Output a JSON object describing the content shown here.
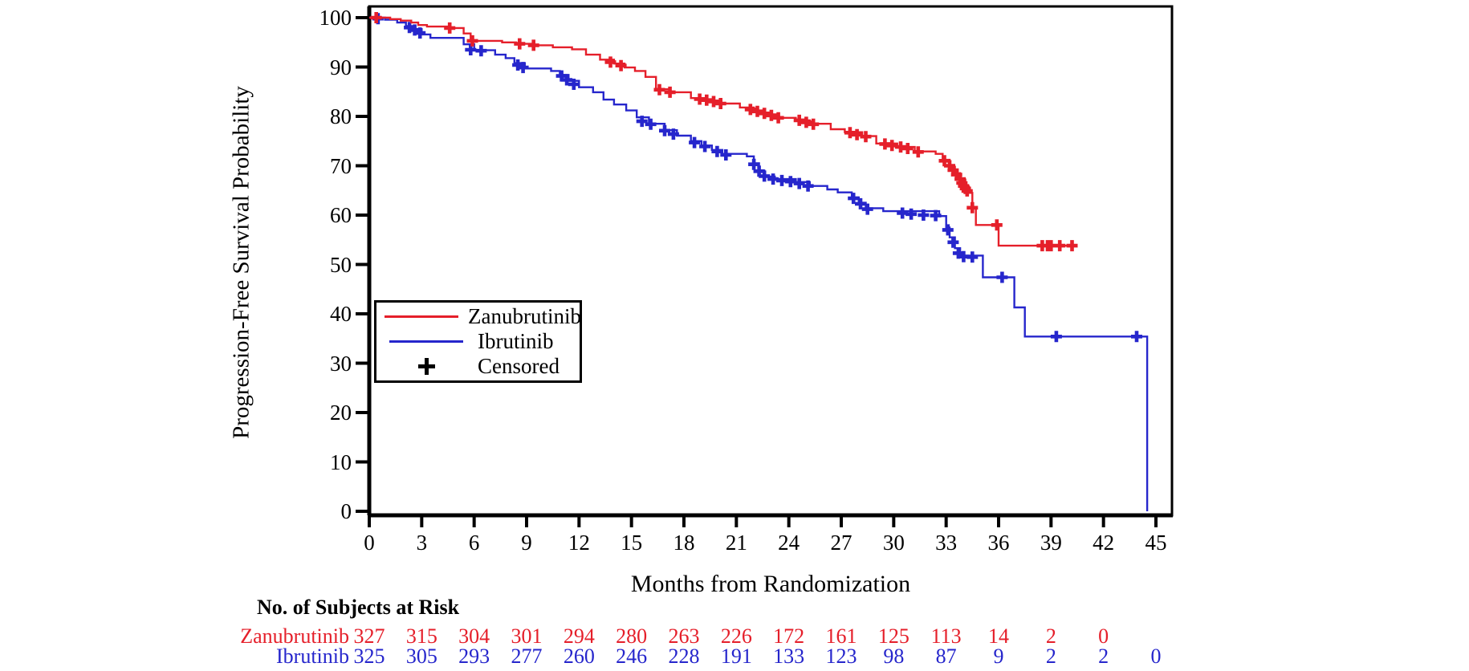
{
  "figure": {
    "y_axis": {
      "title": "Progression-Free Survival Probability",
      "tick_values": [
        0,
        10,
        20,
        30,
        40,
        50,
        60,
        70,
        80,
        90,
        100
      ],
      "range": [
        0,
        100
      ]
    },
    "x_axis": {
      "title": "Months from Randomization",
      "tick_values": [
        0,
        3,
        6,
        9,
        12,
        15,
        18,
        21,
        24,
        27,
        30,
        33,
        36,
        39,
        42,
        45
      ],
      "range": [
        0,
        45
      ]
    },
    "legend": {
      "items": [
        {
          "label": "Zanubrutinib",
          "swatch": "line",
          "color": "#e51f2a"
        },
        {
          "label": "Ibrutinib",
          "swatch": "line",
          "color": "#2626cc"
        },
        {
          "label": "Censored",
          "swatch": "plus",
          "color": "#000000"
        }
      ]
    },
    "risk_table": {
      "title": "No. of Subjects at Risk",
      "rows": [
        {
          "label": "Zanubrutinib",
          "color": "#e51f2a",
          "months": [
            0,
            3,
            6,
            9,
            12,
            15,
            18,
            21,
            24,
            27,
            30,
            33,
            36,
            39,
            42
          ],
          "values": [
            327,
            315,
            304,
            301,
            294,
            280,
            263,
            226,
            172,
            161,
            125,
            113,
            14,
            2,
            0
          ]
        },
        {
          "label": "Ibrutinib",
          "color": "#2626cc",
          "months": [
            0,
            3,
            6,
            9,
            12,
            15,
            18,
            21,
            24,
            27,
            30,
            33,
            36,
            39,
            42,
            45
          ],
          "values": [
            325,
            305,
            293,
            277,
            260,
            246,
            228,
            191,
            133,
            123,
            98,
            87,
            9,
            2,
            2,
            0
          ]
        }
      ]
    }
  },
  "chart_data": {
    "type": "line",
    "subtype": "kaplan-meier-step",
    "title": "",
    "xlabel": "Months from Randomization",
    "ylabel": "Progression-Free Survival Probability",
    "xlim": [
      0,
      45
    ],
    "ylim": [
      0,
      100
    ],
    "grid": false,
    "legend_position": "inside-left",
    "series": [
      {
        "name": "Zanubrutinib",
        "color": "#e51f2a",
        "steps": [
          [
            0,
            100
          ],
          [
            1.2,
            99.7
          ],
          [
            1.8,
            99.4
          ],
          [
            2.4,
            99.0
          ],
          [
            2.8,
            98.5
          ],
          [
            3.3,
            98.2
          ],
          [
            4.6,
            97.9
          ],
          [
            5.4,
            96.8
          ],
          [
            5.8,
            95.3
          ],
          [
            7.6,
            95.0
          ],
          [
            8.4,
            94.7
          ],
          [
            9.4,
            94.4
          ],
          [
            10.5,
            94.0
          ],
          [
            11.6,
            93.6
          ],
          [
            12.4,
            92.5
          ],
          [
            13.2,
            91.5
          ],
          [
            14.0,
            90.7
          ],
          [
            14.6,
            89.9
          ],
          [
            15.2,
            89.2
          ],
          [
            15.8,
            88.0
          ],
          [
            16.4,
            85.5
          ],
          [
            17.2,
            84.9
          ],
          [
            18.4,
            83.7
          ],
          [
            19.2,
            83.2
          ],
          [
            20.0,
            82.6
          ],
          [
            21.2,
            81.8
          ],
          [
            22.0,
            81.2
          ],
          [
            22.6,
            80.4
          ],
          [
            23.4,
            79.7
          ],
          [
            24.4,
            79.2
          ],
          [
            25.2,
            78.5
          ],
          [
            26.4,
            77.4
          ],
          [
            27.2,
            76.8
          ],
          [
            28.2,
            76.0
          ],
          [
            29.0,
            74.5
          ],
          [
            30.2,
            73.8
          ],
          [
            31.2,
            72.9
          ],
          [
            32.4,
            72.4
          ],
          [
            32.8,
            71.2
          ],
          [
            33.2,
            69.8
          ],
          [
            33.5,
            68.5
          ],
          [
            33.8,
            67.2
          ],
          [
            34.1,
            65.8
          ],
          [
            34.3,
            64.5
          ],
          [
            34.5,
            61.5
          ],
          [
            34.7,
            58.0
          ],
          [
            36.0,
            53.8
          ],
          [
            40.5,
            53.8
          ]
        ],
        "censor_marks": [
          [
            0.4,
            100
          ],
          [
            4.6,
            97.9
          ],
          [
            5.9,
            95.3
          ],
          [
            8.6,
            94.7
          ],
          [
            9.4,
            94.4
          ],
          [
            13.8,
            91.0
          ],
          [
            14.4,
            90.3
          ],
          [
            16.6,
            85.4
          ],
          [
            17.2,
            84.9
          ],
          [
            18.9,
            83.5
          ],
          [
            19.3,
            83.3
          ],
          [
            19.7,
            83.0
          ],
          [
            20.1,
            82.6
          ],
          [
            21.8,
            81.4
          ],
          [
            22.2,
            81.0
          ],
          [
            22.6,
            80.6
          ],
          [
            23.0,
            80.2
          ],
          [
            23.4,
            79.7
          ],
          [
            24.6,
            79.2
          ],
          [
            25.0,
            78.8
          ],
          [
            25.4,
            78.4
          ],
          [
            27.5,
            76.7
          ],
          [
            27.9,
            76.3
          ],
          [
            28.4,
            75.9
          ],
          [
            29.5,
            74.4
          ],
          [
            29.9,
            74.1
          ],
          [
            30.4,
            73.8
          ],
          [
            30.8,
            73.5
          ],
          [
            31.4,
            72.8
          ],
          [
            32.9,
            71.0
          ],
          [
            33.2,
            70.0
          ],
          [
            33.4,
            69.1
          ],
          [
            33.6,
            68.2
          ],
          [
            33.8,
            67.3
          ],
          [
            33.9,
            66.5
          ],
          [
            34.0,
            65.9
          ],
          [
            34.1,
            65.4
          ],
          [
            34.2,
            64.9
          ],
          [
            34.5,
            61.5
          ],
          [
            35.9,
            58.0
          ],
          [
            38.5,
            53.8
          ],
          [
            38.8,
            53.8
          ],
          [
            39.0,
            53.8
          ],
          [
            39.5,
            53.8
          ],
          [
            40.2,
            53.8
          ]
        ]
      },
      {
        "name": "Ibrutinib",
        "color": "#2626cc",
        "steps": [
          [
            0,
            100
          ],
          [
            0.9,
            99.6
          ],
          [
            1.6,
            99.0
          ],
          [
            2.1,
            98.3
          ],
          [
            2.5,
            97.7
          ],
          [
            3.0,
            96.6
          ],
          [
            3.5,
            95.9
          ],
          [
            5.4,
            94.6
          ],
          [
            6.0,
            93.4
          ],
          [
            7.2,
            92.5
          ],
          [
            7.8,
            91.8
          ],
          [
            8.3,
            90.8
          ],
          [
            8.9,
            89.7
          ],
          [
            10.4,
            89.2
          ],
          [
            10.9,
            88.4
          ],
          [
            11.4,
            87.2
          ],
          [
            12.0,
            85.9
          ],
          [
            12.8,
            84.9
          ],
          [
            13.4,
            83.4
          ],
          [
            14.0,
            82.4
          ],
          [
            14.7,
            81.2
          ],
          [
            15.3,
            79.8
          ],
          [
            16.0,
            78.5
          ],
          [
            16.9,
            77.2
          ],
          [
            17.6,
            76.1
          ],
          [
            18.4,
            75.0
          ],
          [
            19.0,
            74.1
          ],
          [
            19.6,
            73.2
          ],
          [
            20.2,
            72.4
          ],
          [
            21.6,
            71.9
          ],
          [
            22.0,
            70.5
          ],
          [
            22.3,
            69.0
          ],
          [
            22.6,
            67.8
          ],
          [
            23.2,
            67.3
          ],
          [
            24.4,
            66.7
          ],
          [
            25.2,
            65.9
          ],
          [
            26.2,
            65.2
          ],
          [
            26.8,
            64.6
          ],
          [
            27.6,
            63.6
          ],
          [
            28.0,
            62.5
          ],
          [
            28.4,
            61.4
          ],
          [
            29.4,
            60.8
          ],
          [
            32.6,
            59.8
          ],
          [
            33.0,
            57.5
          ],
          [
            33.2,
            55.5
          ],
          [
            33.5,
            53.3
          ],
          [
            33.8,
            51.8
          ],
          [
            35.1,
            47.4
          ],
          [
            36.9,
            41.3
          ],
          [
            37.5,
            35.4
          ],
          [
            44.5,
            35.4
          ],
          [
            44.5,
            0
          ]
        ],
        "censor_marks": [
          [
            0.5,
            99.8
          ],
          [
            2.3,
            98.0
          ],
          [
            2.6,
            97.5
          ],
          [
            2.9,
            96.9
          ],
          [
            5.8,
            93.5
          ],
          [
            6.4,
            93.3
          ],
          [
            8.5,
            90.4
          ],
          [
            8.8,
            89.9
          ],
          [
            11.0,
            88.2
          ],
          [
            11.3,
            87.4
          ],
          [
            11.7,
            86.5
          ],
          [
            15.6,
            79.0
          ],
          [
            16.1,
            78.4
          ],
          [
            16.9,
            77.1
          ],
          [
            17.4,
            76.4
          ],
          [
            18.6,
            74.7
          ],
          [
            19.2,
            73.9
          ],
          [
            19.9,
            72.9
          ],
          [
            20.4,
            72.2
          ],
          [
            22.0,
            70.3
          ],
          [
            22.3,
            68.9
          ],
          [
            22.6,
            67.9
          ],
          [
            23.1,
            67.3
          ],
          [
            23.6,
            67.0
          ],
          [
            24.1,
            66.8
          ],
          [
            24.6,
            66.4
          ],
          [
            25.1,
            65.9
          ],
          [
            27.7,
            63.4
          ],
          [
            28.1,
            62.3
          ],
          [
            28.5,
            61.2
          ],
          [
            30.5,
            60.4
          ],
          [
            31.0,
            60.2
          ],
          [
            31.7,
            60.0
          ],
          [
            32.4,
            59.9
          ],
          [
            33.1,
            57.0
          ],
          [
            33.4,
            54.5
          ],
          [
            33.7,
            52.3
          ],
          [
            34.0,
            51.6
          ],
          [
            34.5,
            51.5
          ],
          [
            36.2,
            47.4
          ],
          [
            39.3,
            35.4
          ],
          [
            43.9,
            35.4
          ]
        ]
      }
    ]
  }
}
